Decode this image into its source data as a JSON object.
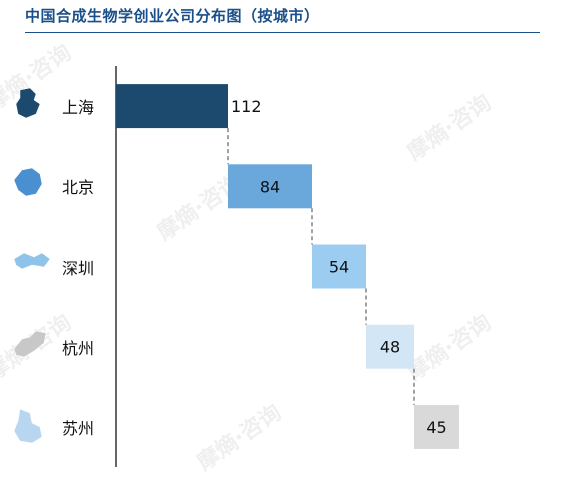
{
  "title": "中国合成生物学创业公司分布图（按城市）",
  "watermark": "摩熵·咨询",
  "chart_data": {
    "type": "bar",
    "subtype": "waterfall-descending",
    "title": "中国合成生物学创业公司分布图（按城市）",
    "categories": [
      "上海",
      "北京",
      "深圳",
      "杭州",
      "苏州"
    ],
    "values": [
      112,
      84,
      54,
      48,
      45
    ],
    "value_labels": [
      "112",
      "84",
      "54",
      "48",
      "45"
    ],
    "colors": [
      "#1b4a6e",
      "#6aa8dc",
      "#9ccdf0",
      "#d2e6f6",
      "#d9d9d9"
    ],
    "label_colors": [
      "#111111",
      "#111111",
      "#111111",
      "#111111",
      "#111111"
    ],
    "icons": [
      "shanghai-map-icon",
      "beijing-map-icon",
      "shenzhen-map-icon",
      "hangzhou-map-icon",
      "suzhou-map-icon"
    ],
    "connector_lines": "dashed",
    "xlim": [
      0,
      464
    ],
    "grid": false,
    "legend": "none"
  }
}
